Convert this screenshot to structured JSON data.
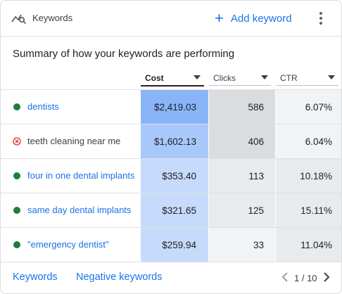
{
  "header": {
    "title": "Keywords",
    "add_label": "Add keyword"
  },
  "summary": "Summary of how your keywords are performing",
  "columns": [
    {
      "label": "Cost",
      "sorted": true
    },
    {
      "label": "Clicks",
      "sorted": false
    },
    {
      "label": "CTR",
      "sorted": false
    }
  ],
  "rows": [
    {
      "keyword": "dentists",
      "status": "enabled",
      "cost": "$2,419.03",
      "clicks": "586",
      "ctr": "6.07%"
    },
    {
      "keyword": "teeth cleaning near me",
      "status": "error",
      "cost": "$1,602.13",
      "clicks": "406",
      "ctr": "6.04%"
    },
    {
      "keyword": "four in one dental implants",
      "status": "enabled",
      "cost": "$353.40",
      "clicks": "113",
      "ctr": "10.18%"
    },
    {
      "keyword": "same day dental implants",
      "status": "enabled",
      "cost": "$321.65",
      "clicks": "125",
      "ctr": "15.11%"
    },
    {
      "keyword": "\"emergency dentist\"",
      "status": "enabled",
      "cost": "$259.94",
      "clicks": "33",
      "ctr": "11.04%"
    }
  ],
  "footer": {
    "tab_keywords": "Keywords",
    "tab_negative": "Negative keywords",
    "pagination": "1 / 10"
  },
  "colors": {
    "accent": "#1a73e8",
    "status_enabled": "#188038",
    "status_error": "#d93025",
    "cost_shades": [
      "#8ab4f8",
      "#a8c7fa",
      "#c6dafc",
      "#c6dafc",
      "#c6dafc"
    ],
    "clicks_shades": [
      "#dadce0",
      "#dadce0",
      "#e8eaed",
      "#e8eaed",
      "#f1f3f4"
    ],
    "ctr_shades": [
      "#f1f3f4",
      "#f1f3f4",
      "#e8eaed",
      "#e8eaed",
      "#e8eaed"
    ]
  },
  "icons": {
    "header": "keyword-search-icon",
    "add": "plus-icon",
    "menu": "more-vert-icon",
    "prev": "chevron-left-icon",
    "next": "chevron-right-icon"
  }
}
